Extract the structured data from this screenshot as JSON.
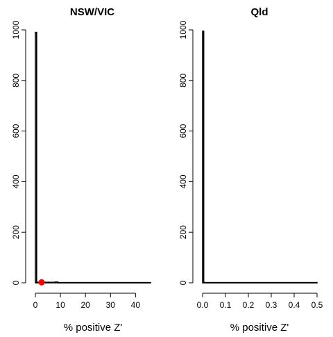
{
  "chart_data": [
    {
      "type": "histogram",
      "title": "NSW/VIC",
      "xlabel": "% positive Z'",
      "ylabel": "",
      "xlim": [
        0,
        46
      ],
      "ylim": [
        0,
        1000
      ],
      "x_ticks": [
        "0",
        "10",
        "20",
        "30",
        "40"
      ],
      "y_ticks": [
        "0",
        "200",
        "400",
        "600",
        "800",
        "1000"
      ],
      "bins": [
        {
          "x0": 0,
          "x1": 0.5,
          "count": 990
        },
        {
          "x0": 0.5,
          "x1": 8,
          "count": 2
        },
        {
          "x0": 8,
          "x1": 9,
          "count": 3
        },
        {
          "x0": 9,
          "x1": 46,
          "count": 1
        }
      ],
      "highlight_point": {
        "x": 2.5,
        "y": 2,
        "color": "#ff0000"
      }
    },
    {
      "type": "histogram",
      "title": "Qld",
      "xlabel": "% positive Z'",
      "ylabel": "",
      "xlim": [
        0,
        0.5
      ],
      "ylim": [
        0,
        1000
      ],
      "x_ticks": [
        "0.0",
        "0.1",
        "0.2",
        "0.3",
        "0.4",
        "0.5"
      ],
      "y_ticks": [
        "0",
        "200",
        "400",
        "600",
        "800",
        "1000"
      ],
      "bins": [
        {
          "x0": 0,
          "x1": 0.005,
          "count": 995
        },
        {
          "x0": 0.005,
          "x1": 0.5,
          "count": 1
        }
      ]
    }
  ],
  "colors": {
    "bar": "#000000",
    "axis": "#000000",
    "highlight": "#ff0000"
  }
}
